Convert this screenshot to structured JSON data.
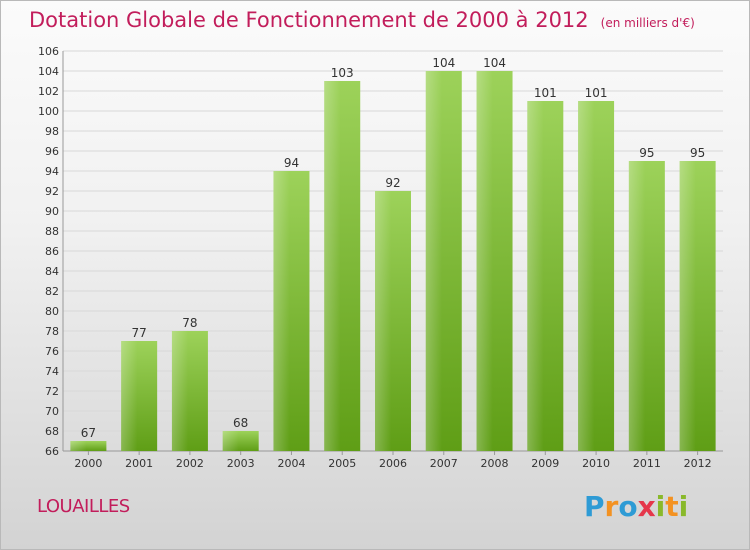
{
  "header": {
    "title": "Dotation Globale de Fonctionnement de 2000 à 2012",
    "unit": "(en milliers d'€)"
  },
  "footer": {
    "commune": "LOUAILLES",
    "logo_text": "Proxiti"
  },
  "colors": {
    "title": "#c21d5b",
    "bar_top": "#9dd25a",
    "bar_bottom": "#5f9e16",
    "grid": "#d8d8d8"
  },
  "chart_data": {
    "type": "bar",
    "title": "Dotation Globale de Fonctionnement de 2000 à 2012",
    "xlabel": "",
    "ylabel": "",
    "categories": [
      "2000",
      "2001",
      "2002",
      "2003",
      "2004",
      "2005",
      "2006",
      "2007",
      "2008",
      "2009",
      "2010",
      "2011",
      "2012"
    ],
    "values": [
      67,
      77,
      78,
      68,
      94,
      103,
      92,
      104,
      104,
      101,
      101,
      95,
      95
    ],
    "ylim": [
      66,
      106
    ],
    "yticks": [
      66,
      68,
      70,
      72,
      74,
      76,
      78,
      80,
      82,
      84,
      86,
      88,
      90,
      92,
      94,
      96,
      98,
      100,
      102,
      104,
      106
    ],
    "grid": true,
    "data_labels": true
  }
}
